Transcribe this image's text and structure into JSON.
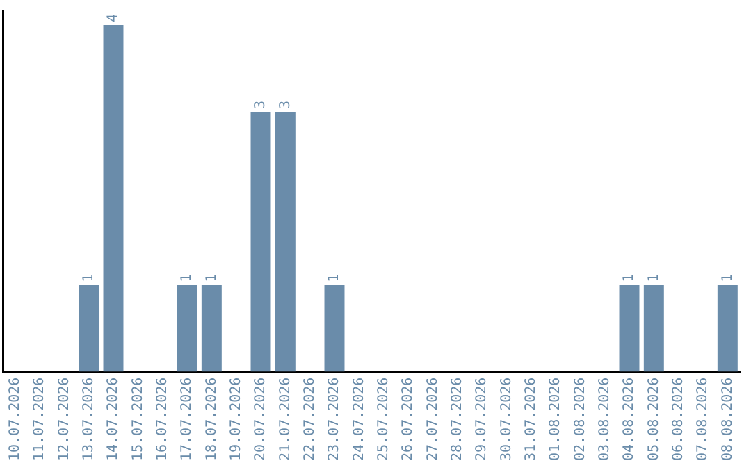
{
  "chart_data": {
    "type": "bar",
    "categories": [
      "10.07.2026",
      "11.07.2026",
      "12.07.2026",
      "13.07.2026",
      "14.07.2026",
      "15.07.2026",
      "16.07.2026",
      "17.07.2026",
      "18.07.2026",
      "19.07.2026",
      "20.07.2026",
      "21.07.2026",
      "22.07.2026",
      "23.07.2026",
      "24.07.2026",
      "25.07.2026",
      "26.07.2026",
      "27.07.2026",
      "28.07.2026",
      "29.07.2026",
      "30.07.2026",
      "31.07.2026",
      "01.08.2026",
      "02.08.2026",
      "03.08.2026",
      "04.08.2026",
      "05.08.2026",
      "06.08.2026",
      "07.08.2026",
      "08.08.2026"
    ],
    "values": [
      0,
      0,
      0,
      1,
      4,
      0,
      0,
      1,
      1,
      0,
      3,
      3,
      0,
      1,
      0,
      0,
      0,
      0,
      0,
      0,
      0,
      0,
      0,
      0,
      0,
      1,
      1,
      0,
      0,
      1
    ],
    "value_labels": [
      null,
      null,
      null,
      "1",
      "4",
      null,
      null,
      "1",
      "1",
      null,
      "3",
      "3",
      null,
      "1",
      null,
      null,
      null,
      null,
      null,
      null,
      null,
      null,
      null,
      null,
      null,
      "1",
      "1",
      null,
      null,
      "1"
    ],
    "color": "#6a8caa",
    "ylim": [
      0,
      4.16
    ],
    "tick_labels": "x",
    "grid": false,
    "legend": false
  }
}
